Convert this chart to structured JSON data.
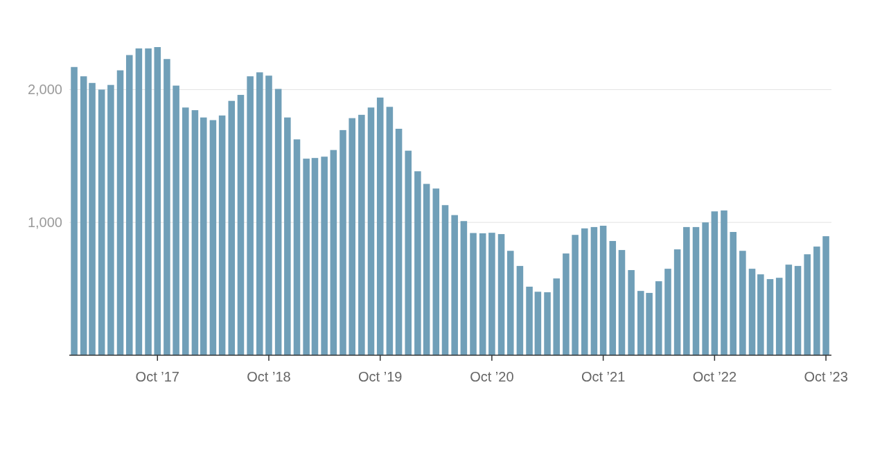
{
  "chart_data": {
    "type": "bar",
    "color": "#709fb8",
    "grid": "y",
    "x": [
      "2017-01",
      "2017-02",
      "2017-03",
      "2017-04",
      "2017-05",
      "2017-06",
      "2017-07",
      "2017-08",
      "2017-09",
      "2017-10",
      "2017-11",
      "2017-12",
      "2018-01",
      "2018-02",
      "2018-03",
      "2018-04",
      "2018-05",
      "2018-06",
      "2018-07",
      "2018-08",
      "2018-09",
      "2018-10",
      "2018-11",
      "2018-12",
      "2019-01",
      "2019-02",
      "2019-03",
      "2019-04",
      "2019-05",
      "2019-06",
      "2019-07",
      "2019-08",
      "2019-09",
      "2019-10",
      "2019-11",
      "2019-12",
      "2020-01",
      "2020-02",
      "2020-03",
      "2020-04",
      "2020-05",
      "2020-06",
      "2020-07",
      "2020-08",
      "2020-09",
      "2020-10",
      "2020-11",
      "2020-12",
      "2021-01",
      "2021-02",
      "2021-03",
      "2021-04",
      "2021-05",
      "2021-06",
      "2021-07",
      "2021-08",
      "2021-09",
      "2021-10",
      "2021-11",
      "2021-12",
      "2022-01",
      "2022-02",
      "2022-03",
      "2022-04",
      "2022-05",
      "2022-06",
      "2022-07",
      "2022-08",
      "2022-09",
      "2022-10",
      "2022-11",
      "2022-12",
      "2023-01",
      "2023-02",
      "2023-03",
      "2023-04",
      "2023-05",
      "2023-06",
      "2023-07",
      "2023-08",
      "2023-09",
      "2023-10"
    ],
    "values": [
      2170,
      2100,
      2050,
      2000,
      2035,
      2145,
      2260,
      2310,
      2310,
      2320,
      2230,
      2030,
      1865,
      1845,
      1790,
      1770,
      1805,
      1915,
      1960,
      2100,
      2130,
      2105,
      2005,
      1790,
      1625,
      1480,
      1485,
      1495,
      1545,
      1695,
      1785,
      1810,
      1865,
      1940,
      1870,
      1705,
      1540,
      1385,
      1290,
      1255,
      1130,
      1055,
      1010,
      920,
      918,
      922,
      912,
      786,
      672,
      516,
      478,
      474,
      578,
      766,
      906,
      955,
      965,
      975,
      860,
      792,
      641,
      484,
      469,
      557,
      651,
      797,
      965,
      965,
      1000,
      1083,
      1090,
      928,
      786,
      651,
      609,
      573,
      583,
      682,
      672,
      760,
      818,
      896
    ],
    "xlim": [
      "2016-12-16",
      "2023-10-19"
    ],
    "xticks": [
      {
        "value": "2017-10",
        "label": "Oct ’17"
      },
      {
        "value": "2018-10",
        "label": "Oct ’18"
      },
      {
        "value": "2019-10",
        "label": "Oct ’19"
      },
      {
        "value": "2020-10",
        "label": "Oct ’20"
      },
      {
        "value": "2021-10",
        "label": "Oct ’21"
      },
      {
        "value": "2022-10",
        "label": "Oct ’22"
      },
      {
        "value": "2023-10",
        "label": "Oct ’23"
      }
    ],
    "ylim": [
      0,
      2320
    ],
    "yticks": [
      {
        "value": 1000,
        "label": "1,000"
      },
      {
        "value": 2000,
        "label": "2,000"
      }
    ]
  }
}
